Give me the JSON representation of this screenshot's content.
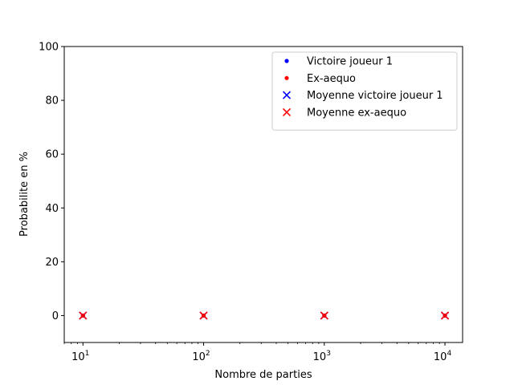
{
  "chart_data": {
    "type": "scatter",
    "title": "",
    "xlabel": "Nombre de parties",
    "ylabel": "Probabilite en %",
    "xscale": "log",
    "xlim": [
      7,
      14000
    ],
    "ylim": [
      -10,
      100
    ],
    "grid": false,
    "legend_position": "top-right",
    "xticks": [
      {
        "value": 10,
        "base": "10",
        "exp": "1"
      },
      {
        "value": 100,
        "base": "10",
        "exp": "2"
      },
      {
        "value": 1000,
        "base": "10",
        "exp": "3"
      },
      {
        "value": 10000,
        "base": "10",
        "exp": "4"
      }
    ],
    "yticks": [
      {
        "value": 0,
        "label": "0"
      },
      {
        "value": 20,
        "label": "20"
      },
      {
        "value": 40,
        "label": "40"
      },
      {
        "value": 60,
        "label": "60"
      },
      {
        "value": 80,
        "label": "80"
      },
      {
        "value": 100,
        "label": "100"
      }
    ],
    "series": [
      {
        "name": "Victoire joueur 1",
        "marker": "dot",
        "color": "#0000ff",
        "x": [
          10,
          100,
          1000,
          10000
        ],
        "y": [
          0,
          0,
          0,
          0
        ]
      },
      {
        "name": "Ex-aequo",
        "marker": "dot",
        "color": "#ff0000",
        "x": [
          10,
          100,
          1000,
          10000
        ],
        "y": [
          0,
          0,
          0,
          0
        ]
      },
      {
        "name": "Moyenne victoire joueur 1",
        "marker": "x",
        "color": "#0000ff",
        "x": [
          10,
          100,
          1000,
          10000
        ],
        "y": [
          0,
          0,
          0,
          0
        ]
      },
      {
        "name": "Moyenne ex-aequo",
        "marker": "x",
        "color": "#ff0000",
        "x": [
          10,
          100,
          1000,
          10000
        ],
        "y": [
          0,
          0,
          0,
          0
        ]
      }
    ]
  }
}
